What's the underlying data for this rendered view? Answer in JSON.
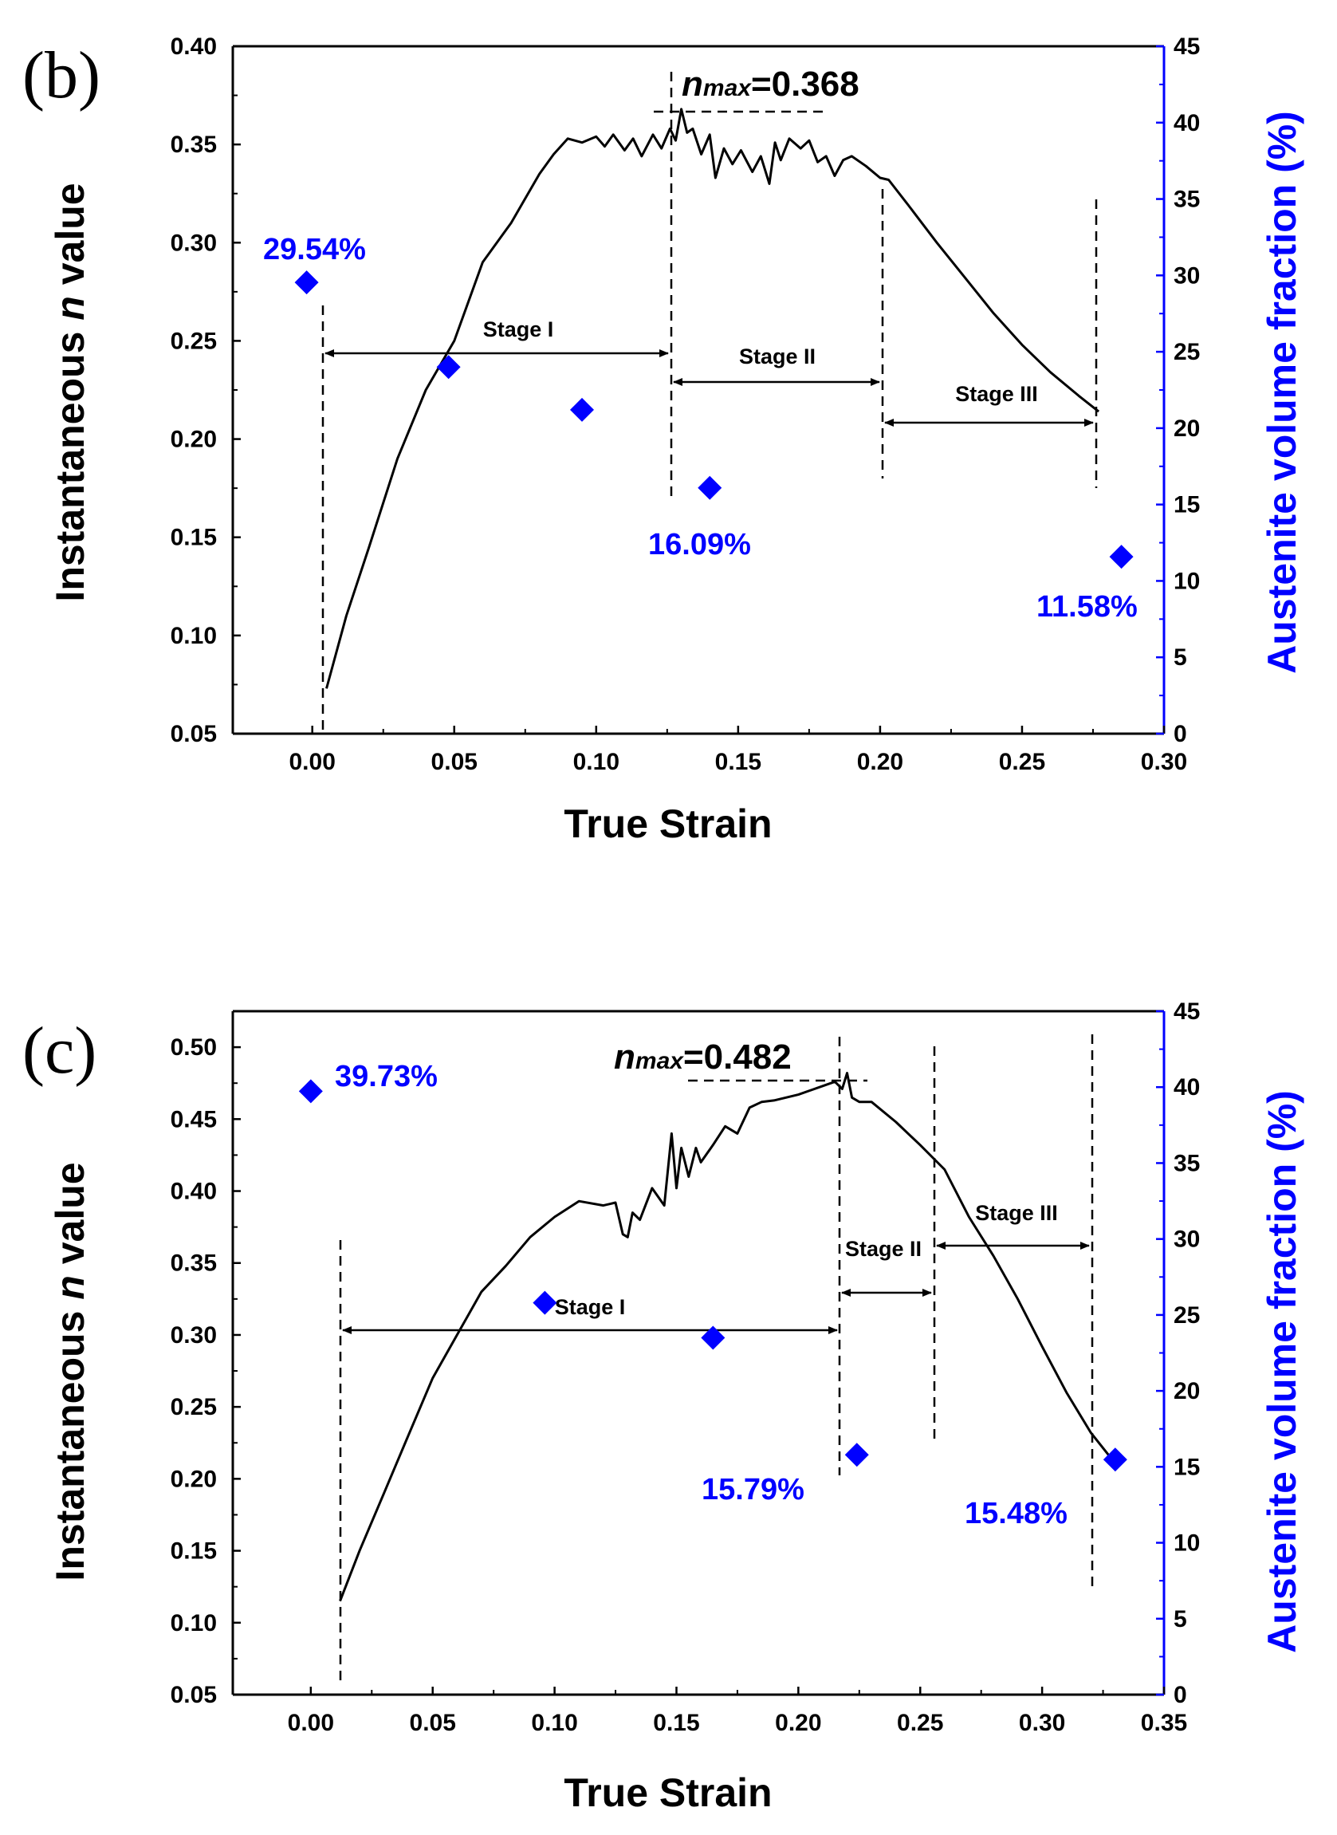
{
  "colors": {
    "axis": "#000000",
    "right_axis": "#0000ff",
    "curve": "#000000",
    "marker": "#0000ff"
  },
  "chart_data": [
    {
      "type": "line",
      "panel_label": "(b)",
      "xlabel": "True Strain",
      "ylabel_prefix": "Instantaneous ",
      "ylabel_italic": "n",
      "ylabel_suffix": " value",
      "y2label": "Austenite volume fraction (%)",
      "xlim": [
        -0.028,
        0.3
      ],
      "ylim": [
        0.05,
        0.4
      ],
      "y2lim": [
        0,
        45
      ],
      "xticks": [
        0.0,
        0.05,
        0.1,
        0.15,
        0.2,
        0.25,
        0.3
      ],
      "xtick_labels": [
        "0.00",
        "0.05",
        "0.10",
        "0.15",
        "0.20",
        "0.25",
        "0.30"
      ],
      "yticks": [
        0.05,
        0.1,
        0.15,
        0.2,
        0.25,
        0.3,
        0.35,
        0.4
      ],
      "ytick_labels": [
        "0.05",
        "0.10",
        "0.15",
        "0.20",
        "0.25",
        "0.30",
        "0.35",
        "0.40"
      ],
      "y2ticks": [
        0,
        5,
        10,
        15,
        20,
        25,
        30,
        35,
        40,
        45
      ],
      "y2tick_labels": [
        "0",
        "5",
        "10",
        "15",
        "20",
        "25",
        "30",
        "35",
        "40",
        "45"
      ],
      "n_curve": {
        "name": "Instantaneous n value",
        "x": [
          0.005,
          0.012,
          0.02,
          0.03,
          0.04,
          0.05,
          0.06,
          0.07,
          0.08,
          0.085,
          0.09,
          0.095,
          0.1,
          0.103,
          0.106,
          0.11,
          0.113,
          0.116,
          0.12,
          0.123,
          0.126,
          0.128,
          0.13,
          0.132,
          0.134,
          0.137,
          0.14,
          0.142,
          0.145,
          0.148,
          0.151,
          0.155,
          0.158,
          0.161,
          0.163,
          0.165,
          0.168,
          0.172,
          0.175,
          0.178,
          0.181,
          0.184,
          0.187,
          0.19,
          0.195,
          0.2,
          0.203,
          0.21,
          0.22,
          0.23,
          0.24,
          0.25,
          0.26,
          0.27,
          0.277
        ],
        "y": [
          0.073,
          0.11,
          0.145,
          0.19,
          0.225,
          0.25,
          0.29,
          0.31,
          0.335,
          0.345,
          0.353,
          0.351,
          0.354,
          0.349,
          0.355,
          0.347,
          0.353,
          0.344,
          0.355,
          0.348,
          0.358,
          0.352,
          0.368,
          0.356,
          0.358,
          0.345,
          0.355,
          0.333,
          0.348,
          0.34,
          0.347,
          0.336,
          0.344,
          0.33,
          0.351,
          0.342,
          0.353,
          0.348,
          0.352,
          0.341,
          0.344,
          0.334,
          0.342,
          0.344,
          0.339,
          0.333,
          0.332,
          0.319,
          0.3,
          0.282,
          0.264,
          0.248,
          0.234,
          0.222,
          0.214
        ]
      },
      "austenite": {
        "name": "Austenite volume fraction",
        "x": [
          -0.002,
          0.048,
          0.095,
          0.14,
          0.285
        ],
        "y": [
          29.54,
          24.0,
          21.2,
          16.09,
          11.58
        ]
      },
      "point_labels": [
        "29.54%",
        "16.09%",
        "11.58%"
      ],
      "stages": [
        "Stage I",
        "Stage II",
        "Stage III"
      ],
      "nmax_prefix": "n",
      "nmax_sub": "max",
      "nmax_value": "=0.368"
    },
    {
      "type": "line",
      "panel_label": "(c)",
      "xlabel": "True Strain",
      "ylabel_prefix": "Instantaneous ",
      "ylabel_italic": "n",
      "ylabel_suffix": " value",
      "y2label": "Austenite volume fraction (%)",
      "xlim": [
        -0.032,
        0.35
      ],
      "ylim": [
        0.05,
        0.525
      ],
      "y2lim": [
        0,
        45
      ],
      "xticks": [
        0.0,
        0.05,
        0.1,
        0.15,
        0.2,
        0.25,
        0.3,
        0.35
      ],
      "xtick_labels": [
        "0.00",
        "0.05",
        "0.10",
        "0.15",
        "0.20",
        "0.25",
        "0.30",
        "0.35"
      ],
      "yticks": [
        0.05,
        0.1,
        0.15,
        0.2,
        0.25,
        0.3,
        0.35,
        0.4,
        0.45,
        0.5
      ],
      "ytick_labels": [
        "0.05",
        "0.10",
        "0.15",
        "0.20",
        "0.25",
        "0.30",
        "0.35",
        "0.40",
        "0.45",
        "0.50"
      ],
      "y2ticks": [
        0,
        5,
        10,
        15,
        20,
        25,
        30,
        35,
        40,
        45
      ],
      "y2tick_labels": [
        "0",
        "5",
        "10",
        "15",
        "20",
        "25",
        "30",
        "35",
        "40",
        "45"
      ],
      "n_curve": {
        "name": "Instantaneous n value",
        "x": [
          0.012,
          0.02,
          0.03,
          0.04,
          0.05,
          0.06,
          0.07,
          0.08,
          0.09,
          0.1,
          0.11,
          0.12,
          0.125,
          0.128,
          0.13,
          0.132,
          0.135,
          0.14,
          0.145,
          0.148,
          0.15,
          0.152,
          0.155,
          0.158,
          0.16,
          0.165,
          0.17,
          0.175,
          0.18,
          0.185,
          0.19,
          0.2,
          0.21,
          0.215,
          0.218,
          0.22,
          0.222,
          0.225,
          0.23,
          0.24,
          0.25,
          0.26,
          0.27,
          0.28,
          0.29,
          0.3,
          0.31,
          0.32,
          0.328
        ],
        "y": [
          0.115,
          0.15,
          0.19,
          0.23,
          0.27,
          0.3,
          0.33,
          0.348,
          0.368,
          0.382,
          0.393,
          0.39,
          0.392,
          0.37,
          0.368,
          0.385,
          0.38,
          0.402,
          0.39,
          0.44,
          0.402,
          0.43,
          0.41,
          0.43,
          0.42,
          0.432,
          0.445,
          0.44,
          0.458,
          0.462,
          0.463,
          0.467,
          0.473,
          0.476,
          0.471,
          0.482,
          0.465,
          0.462,
          0.462,
          0.448,
          0.432,
          0.415,
          0.382,
          0.355,
          0.325,
          0.292,
          0.26,
          0.232,
          0.215
        ]
      },
      "austenite": {
        "name": "Austenite volume fraction",
        "x": [
          0.0,
          0.096,
          0.165,
          0.224,
          0.33
        ],
        "y": [
          39.73,
          25.8,
          23.5,
          15.79,
          15.48
        ]
      },
      "point_labels": [
        "39.73%",
        "15.79%",
        "15.48%"
      ],
      "stages": [
        "Stage I",
        "Stage II",
        "Stage III"
      ],
      "nmax_prefix": "n",
      "nmax_sub": "max",
      "nmax_value": "=0.482"
    }
  ]
}
